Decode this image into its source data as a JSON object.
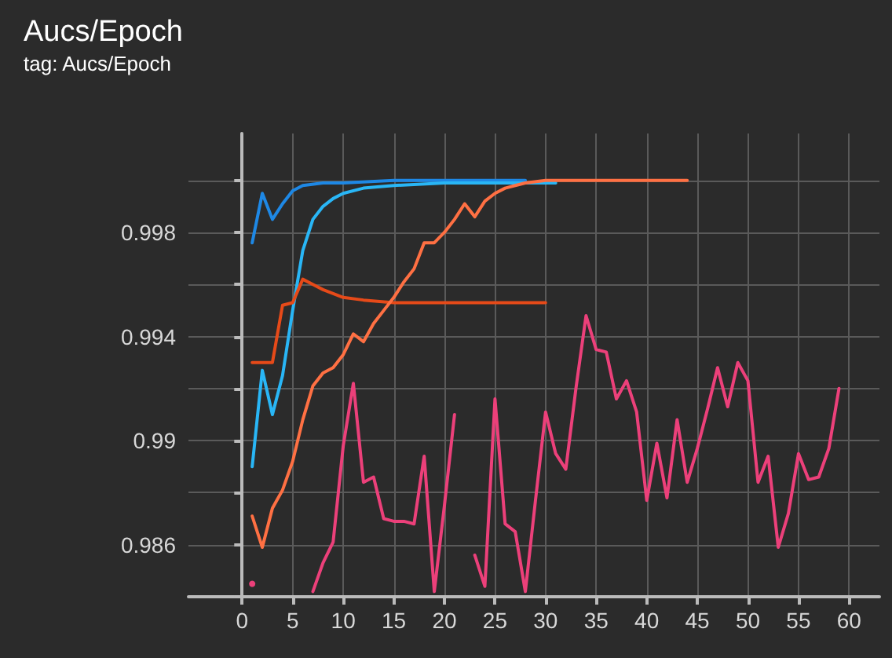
{
  "chart_data": {
    "type": "line",
    "title": "Aucs/Epoch",
    "subtitle": "tag: Aucs/Epoch",
    "xlim": [
      -5.3,
      63
    ],
    "xticks": [
      0,
      5,
      10,
      15,
      20,
      25,
      30,
      35,
      40,
      45,
      50,
      55,
      60
    ],
    "ylim": [
      0.984,
      1.0018
    ],
    "yticks": [
      {
        "value": 0.984,
        "label": null
      },
      0.986,
      {
        "value": 0.988,
        "label": null
      },
      0.99,
      {
        "value": 0.992,
        "label": null
      },
      0.994,
      {
        "value": 0.996,
        "label": null
      },
      0.998,
      {
        "value": 1.0,
        "label": null
      }
    ],
    "grid": true,
    "line_style": "solid",
    "series": [
      {
        "color": "#1e88e5",
        "x": [
          1,
          2,
          3,
          4,
          5,
          6,
          8,
          10,
          15,
          20,
          28
        ],
        "values": [
          0.9976,
          0.9995,
          0.9985,
          0.9991,
          0.9996,
          0.9998,
          0.9999,
          0.9999,
          1.0,
          1.0,
          1.0
        ]
      },
      {
        "color": "#29b6f6",
        "x": [
          1,
          2,
          3,
          4,
          5,
          6,
          7,
          8,
          9,
          10,
          12,
          15,
          20,
          25,
          31
        ],
        "values": [
          0.989,
          0.9927,
          0.991,
          0.9925,
          0.995,
          0.9973,
          0.9985,
          0.999,
          0.9993,
          0.9995,
          0.9997,
          0.9998,
          0.9999,
          0.9999,
          0.9999
        ]
      },
      {
        "color": "#e64a19",
        "x": [
          1,
          2,
          3,
          4,
          5,
          6,
          7,
          8,
          10,
          12,
          15,
          20,
          25,
          30
        ],
        "values": [
          0.993,
          0.993,
          0.993,
          0.9952,
          0.9953,
          0.9962,
          0.996,
          0.9958,
          0.9955,
          0.9954,
          0.9953,
          0.9953,
          0.9953,
          0.9953
        ]
      },
      {
        "color": "#ff7043",
        "x": [
          1,
          2,
          3,
          4,
          5,
          6,
          7,
          8,
          9,
          10,
          11,
          12,
          13,
          14,
          15,
          16,
          17,
          18,
          19,
          20,
          21,
          22,
          23,
          24,
          25,
          26,
          27,
          28,
          30,
          35,
          40,
          44
        ],
        "values": [
          0.9871,
          0.9859,
          0.9874,
          0.9881,
          0.9892,
          0.9908,
          0.9921,
          0.9926,
          0.9928,
          0.9933,
          0.9941,
          0.9938,
          0.9945,
          0.995,
          0.9955,
          0.9961,
          0.9966,
          0.9976,
          0.9976,
          0.998,
          0.9985,
          0.9991,
          0.9986,
          0.9992,
          0.9995,
          0.9997,
          0.9998,
          0.9999,
          1.0,
          1.0,
          1.0,
          1.0
        ]
      },
      {
        "color": "#ec407a",
        "x": [
          1,
          2,
          3,
          4,
          5,
          6,
          7,
          8,
          9,
          10,
          11,
          12,
          13,
          14,
          15,
          16,
          17,
          18,
          19,
          20,
          21,
          22,
          23,
          24,
          25,
          26,
          27,
          28,
          29,
          30,
          31,
          32,
          33,
          34,
          35,
          36,
          37,
          38,
          39,
          40,
          41,
          42,
          43,
          44,
          45,
          46,
          47,
          48,
          49,
          50,
          51,
          52,
          53,
          54,
          55,
          56,
          57,
          58,
          59
        ],
        "values": [
          0.9845,
          null,
          null,
          null,
          null,
          null,
          0.9842,
          0.9853,
          0.9861,
          0.9898,
          0.9922,
          0.9884,
          0.9886,
          0.987,
          0.9869,
          0.9869,
          0.9868,
          0.9894,
          0.9842,
          0.9875,
          0.991,
          null,
          0.9856,
          0.9844,
          0.9916,
          0.9868,
          0.9865,
          0.9842,
          0.9877,
          0.9911,
          0.9895,
          0.9889,
          0.992,
          0.9948,
          0.9935,
          0.9934,
          0.9916,
          0.9923,
          0.9911,
          0.9877,
          0.9899,
          0.9878,
          0.9908,
          0.9884,
          0.9897,
          0.9912,
          0.9928,
          0.9913,
          0.993,
          0.9923,
          0.9884,
          0.9894,
          0.9859,
          0.9872,
          0.9895,
          0.9885,
          0.9886,
          0.9897,
          0.992
        ]
      }
    ]
  }
}
